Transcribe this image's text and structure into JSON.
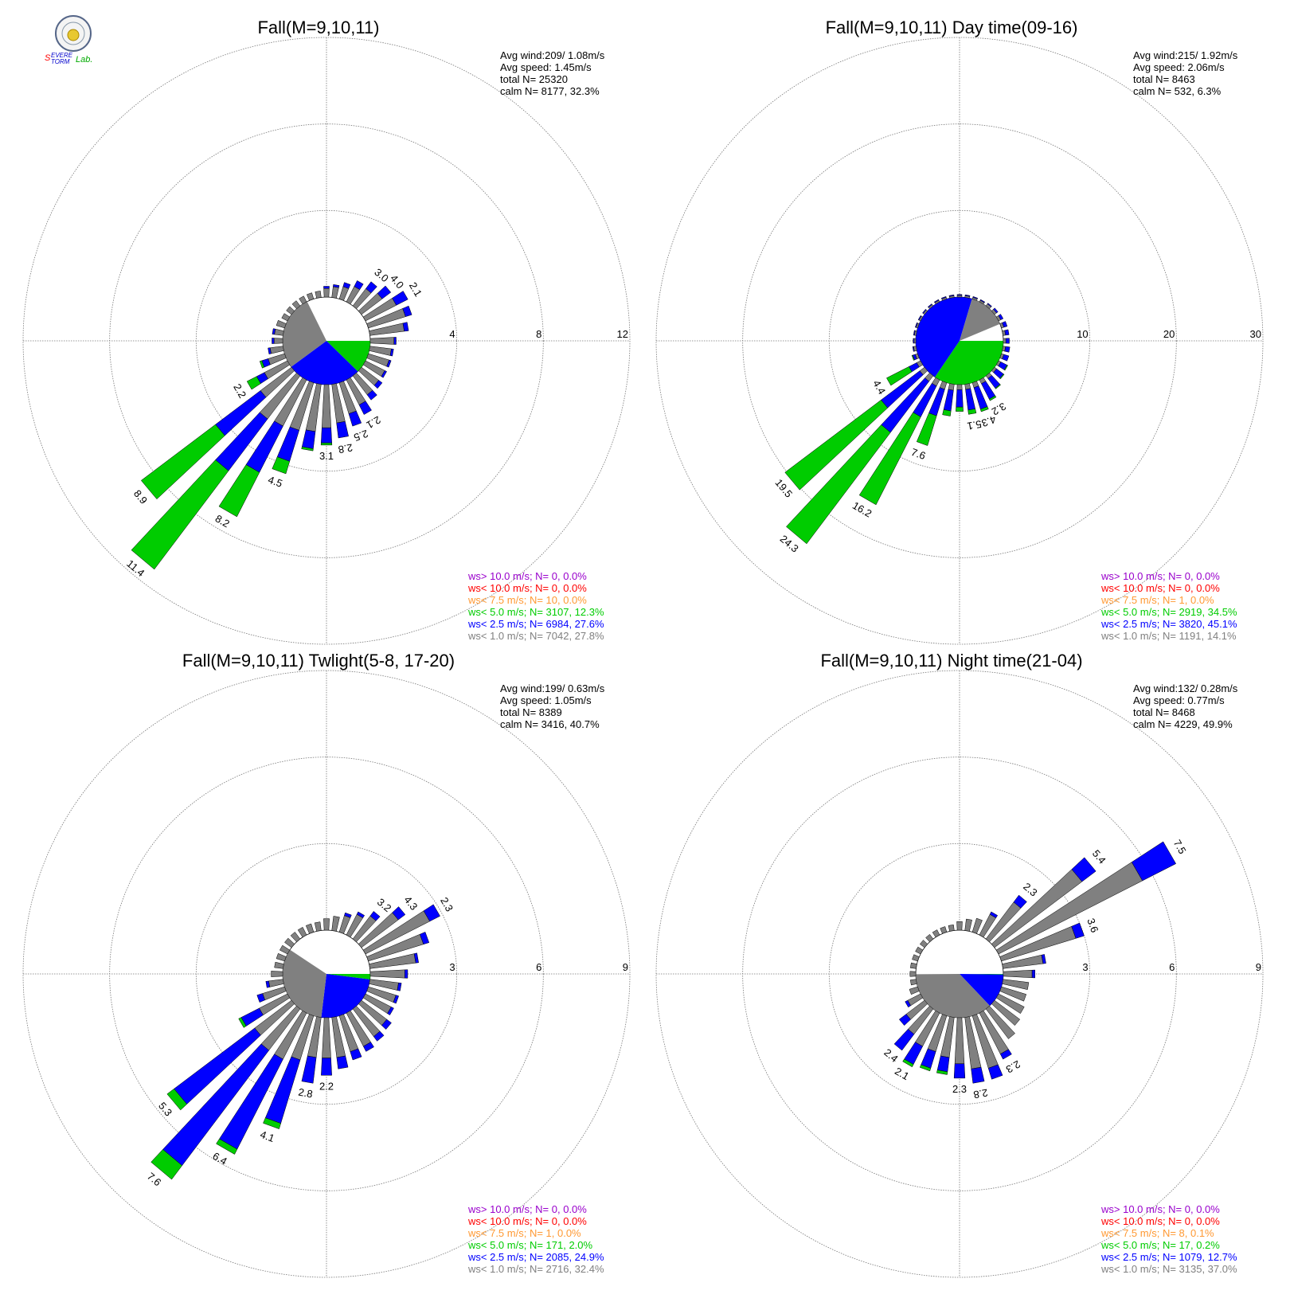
{
  "logo": {
    "alt": "Severe Storm Lab."
  },
  "colors": {
    "ws_gt10": "#9900cc",
    "ws_lt10": "#ff0000",
    "ws_lt75": "#ff9933",
    "ws_lt5": "#00cc00",
    "ws_lt25": "#0000ff",
    "ws_lt1": "#808080"
  },
  "chart_data": [
    {
      "type": "windrose",
      "title": "Fall(M=9,10,11)",
      "stats": [
        "Avg wind:209/ 1.08m/s",
        "Avg speed: 1.45m/s",
        "total N=      25320",
        "calm N=  8177,  32.3%"
      ],
      "rings": [
        "4",
        "8",
        "12"
      ],
      "rmax": 12,
      "calm_pie": {
        "gray": 27.8,
        "blue": 27.6,
        "green": 12.3
      },
      "legend": [
        "ws> 10.0 m/s; N=    0,  0.0%",
        "ws< 10.0 m/s; N=    0,  0.0%",
        "ws<  7.5 m/s; N=   10,  0.0%",
        "ws<  5.0 m/s; N= 3107, 12.3%",
        "ws<  2.5 m/s; N= 6984, 27.6%",
        "ws<  1.0 m/s; N= 7042, 27.8%"
      ],
      "directions_deg": [
        0,
        10,
        20,
        30,
        40,
        50,
        60,
        70,
        80,
        90,
        100,
        110,
        120,
        130,
        140,
        150,
        160,
        170,
        180,
        190,
        200,
        210,
        220,
        230,
        240,
        250,
        260,
        270,
        280,
        290,
        300,
        310,
        320,
        330,
        340,
        350
      ],
      "gray": [
        0.4,
        0.5,
        0.6,
        0.8,
        1.0,
        1.2,
        1.6,
        1.8,
        1.6,
        1.1,
        1.0,
        1.0,
        1.0,
        1.0,
        1.1,
        1.3,
        1.5,
        1.8,
        2.0,
        2.2,
        2.3,
        2.4,
        2.5,
        1.8,
        1.2,
        0.8,
        0.6,
        0.4,
        0.4,
        0.4,
        0.3,
        0.3,
        0.3,
        0.3,
        0.3,
        0.3
      ],
      "blue": [
        0.1,
        0.1,
        0.2,
        0.3,
        0.4,
        0.5,
        0.6,
        0.3,
        0.2,
        0.1,
        0.1,
        0.1,
        0.1,
        0.2,
        0.3,
        0.5,
        0.6,
        0.7,
        0.7,
        0.8,
        1.5,
        2.4,
        3.0,
        2.6,
        0.4,
        0.3,
        0.1,
        0.1,
        0.1,
        0.0,
        0.0,
        0.0,
        0.0,
        0.0,
        0.0,
        0.0
      ],
      "green": [
        0,
        0,
        0,
        0,
        0,
        0,
        0,
        0,
        0,
        0,
        0,
        0,
        0,
        0,
        0,
        0,
        0,
        0,
        0.1,
        0.1,
        0.6,
        2.3,
        5.7,
        4.3,
        0.5,
        0.1,
        0,
        0,
        0,
        0,
        0,
        0,
        0,
        0,
        0,
        0
      ],
      "labels": [
        {
          "dir": 60,
          "text": "2.1"
        },
        {
          "dir": 50,
          "text": "4.0"
        },
        {
          "dir": 40,
          "text": "3.0"
        },
        {
          "dir": 150,
          "text": "2.1"
        },
        {
          "dir": 160,
          "text": "2.5"
        },
        {
          "dir": 170,
          "text": "2.8"
        },
        {
          "dir": 180,
          "text": "3.1"
        },
        {
          "dir": 200,
          "text": "4.5"
        },
        {
          "dir": 210,
          "text": "8.2"
        },
        {
          "dir": 220,
          "text": "11.4"
        },
        {
          "dir": 230,
          "text": "8.9"
        },
        {
          "dir": 240,
          "text": "2.2"
        }
      ]
    },
    {
      "type": "windrose",
      "title": "Fall(M=9,10,11) Day time(09-16)",
      "stats": [
        "Avg wind:215/ 1.92m/s",
        "Avg speed: 2.06m/s",
        "total N=       8463",
        "calm N=   532,   6.3%"
      ],
      "rings": [
        "10",
        "20",
        "30"
      ],
      "rmax": 30,
      "calm_pie": {
        "gray": 14.1,
        "blue": 45.1,
        "green": 34.5
      },
      "legend": [
        "ws> 10.0 m/s; N=    0,  0.0%",
        "ws< 10.0 m/s; N=    0,  0.0%",
        "ws<  7.5 m/s; N=    1,  0.0%",
        "ws<  5.0 m/s; N= 2919, 34.5%",
        "ws<  2.5 m/s; N= 3820, 45.1%",
        "ws<  1.0 m/s; N= 1191, 14.1%"
      ],
      "directions_deg": [
        0,
        10,
        20,
        30,
        40,
        50,
        60,
        70,
        80,
        90,
        100,
        110,
        120,
        130,
        140,
        150,
        160,
        170,
        180,
        190,
        200,
        210,
        220,
        230,
        240,
        250,
        260,
        270,
        280,
        290,
        300,
        310,
        320,
        330,
        340,
        350
      ],
      "gray": [
        0.2,
        0.2,
        0.2,
        0.2,
        0.3,
        0.3,
        0.3,
        0.3,
        0.3,
        0.3,
        0.3,
        0.3,
        0.3,
        0.3,
        0.4,
        0.5,
        0.6,
        0.6,
        0.6,
        0.7,
        0.8,
        0.8,
        0.8,
        0.7,
        0.5,
        0.3,
        0.3,
        0.2,
        0.2,
        0.2,
        0.2,
        0.2,
        0.2,
        0.2,
        0.2,
        0.2
      ],
      "blue": [
        0.1,
        0.1,
        0.1,
        0.1,
        0.1,
        0.2,
        0.3,
        0.4,
        0.4,
        0.4,
        0.5,
        0.6,
        0.8,
        1.0,
        1.4,
        2.0,
        2.6,
        2.4,
        2.0,
        2.4,
        3.2,
        4.0,
        7.4,
        5.6,
        1.0,
        0.3,
        0.1,
        0.1,
        0.1,
        0.1,
        0.1,
        0.1,
        0.1,
        0.1,
        0.1,
        0.1
      ],
      "green": [
        0,
        0,
        0,
        0,
        0,
        0,
        0,
        0,
        0,
        0,
        0,
        0,
        0.1,
        0.1,
        0.1,
        0.2,
        0.3,
        0.5,
        0.5,
        0.6,
        3.6,
        11.4,
        16.1,
        13.9,
        2.9,
        0.1,
        0,
        0,
        0,
        0,
        0,
        0,
        0,
        0,
        0,
        0
      ],
      "labels": [
        {
          "dir": 150,
          "text": "3.2"
        },
        {
          "dir": 160,
          "text": "4.3"
        },
        {
          "dir": 170,
          "text": "5.1"
        },
        {
          "dir": 200,
          "text": "7.6"
        },
        {
          "dir": 210,
          "text": "16.2"
        },
        {
          "dir": 220,
          "text": "24.3"
        },
        {
          "dir": 230,
          "text": "19.5"
        },
        {
          "dir": 240,
          "text": "4.4"
        }
      ]
    },
    {
      "type": "windrose",
      "title": "Fall(M=9,10,11) Twlight(5-8, 17-20)",
      "stats": [
        "Avg wind:199/ 0.63m/s",
        "Avg speed: 1.05m/s",
        "total N=       8389",
        "calm N=  3416,  40.7%"
      ],
      "rings": [
        "3",
        "6",
        "9"
      ],
      "rmax": 9,
      "calm_pie": {
        "gray": 32.4,
        "blue": 24.9,
        "green": 2.0
      },
      "legend": [
        "ws> 10.0 m/s; N=    0,  0.0%",
        "ws< 10.0 m/s; N=    0,  0.0%",
        "ws<  7.5 m/s; N=    1,  0.0%",
        "ws<  5.0 m/s; N=  171,  2.0%",
        "ws<  2.5 m/s; N= 2085, 24.9%",
        "ws<  1.0 m/s; N= 2716, 32.4%"
      ],
      "directions_deg": [
        0,
        10,
        20,
        30,
        40,
        50,
        60,
        70,
        80,
        90,
        100,
        110,
        120,
        130,
        140,
        150,
        160,
        170,
        180,
        190,
        200,
        210,
        220,
        230,
        240,
        250,
        260,
        270,
        280,
        290,
        300,
        310,
        320,
        330,
        340,
        350
      ],
      "gray": [
        0.4,
        0.5,
        0.6,
        0.8,
        1.0,
        1.6,
        2.5,
        2.0,
        1.6,
        1.2,
        1.0,
        1.0,
        1.0,
        1.1,
        1.2,
        1.3,
        1.3,
        1.4,
        1.4,
        1.4,
        1.6,
        1.8,
        1.8,
        1.6,
        1.1,
        0.8,
        0.5,
        0.4,
        0.3,
        0.3,
        0.3,
        0.3,
        0.3,
        0.3,
        0.3,
        0.3
      ],
      "blue": [
        0.0,
        0.0,
        0.1,
        0.1,
        0.2,
        0.3,
        0.4,
        0.2,
        0.1,
        0.1,
        0.1,
        0.1,
        0.1,
        0.2,
        0.2,
        0.2,
        0.3,
        0.4,
        0.6,
        0.9,
        2.3,
        3.5,
        5.0,
        3.5,
        0.7,
        0.2,
        0.1,
        0,
        0,
        0,
        0,
        0,
        0,
        0,
        0,
        0
      ],
      "green": [
        0,
        0,
        0,
        0,
        0,
        0,
        0,
        0,
        0,
        0,
        0,
        0,
        0,
        0,
        0,
        0,
        0,
        0,
        0,
        0,
        0.2,
        0.2,
        0.6,
        0.3,
        0.1,
        0,
        0,
        0,
        0,
        0,
        0,
        0,
        0,
        0,
        0,
        0
      ],
      "labels": [
        {
          "dir": 60,
          "text": "2.3"
        },
        {
          "dir": 50,
          "text": "4.3"
        },
        {
          "dir": 40,
          "text": "3.2"
        },
        {
          "dir": 180,
          "text": "2.2"
        },
        {
          "dir": 190,
          "text": "2.8"
        },
        {
          "dir": 200,
          "text": "4.1"
        },
        {
          "dir": 210,
          "text": "6.4"
        },
        {
          "dir": 220,
          "text": "7.6"
        },
        {
          "dir": 230,
          "text": "5.3"
        }
      ]
    },
    {
      "type": "windrose",
      "title": "Fall(M=9,10,11) Night time(21-04)",
      "stats": [
        "Avg wind:132/ 0.28m/s",
        "Avg speed: 0.77m/s",
        "total N=       8468",
        "calm N=  4229,  49.9%"
      ],
      "rings": [
        "3",
        "6",
        "9"
      ],
      "rmax": 9,
      "calm_pie": {
        "gray": 37.0,
        "blue": 12.7,
        "green": 0.2
      },
      "legend": [
        "ws> 10.0 m/s; N=    0,  0.0%",
        "ws< 10.0 m/s; N=    0,  0.0%",
        "ws<  7.5 m/s; N=    8,  0.1%",
        "ws<  5.0 m/s; N=   17,  0.2%",
        "ws<  2.5 m/s; N= 1079, 12.7%",
        "ws<  1.0 m/s; N= 3135, 37.0%"
      ],
      "directions_deg": [
        0,
        10,
        20,
        30,
        40,
        50,
        60,
        70,
        80,
        90,
        100,
        110,
        120,
        130,
        140,
        150,
        160,
        170,
        180,
        190,
        200,
        210,
        220,
        230,
        240,
        250,
        260,
        270,
        280,
        290,
        300,
        310,
        320,
        330,
        340,
        350
      ],
      "gray": [
        0.3,
        0.4,
        0.5,
        0.8,
        1.6,
        3.8,
        5.6,
        2.7,
        1.4,
        1.0,
        0.9,
        0.9,
        1.0,
        1.1,
        1.3,
        1.6,
        1.9,
        1.8,
        1.6,
        1.4,
        1.3,
        1.3,
        1.1,
        0.8,
        0.5,
        0.3,
        0.2,
        0.2,
        0.2,
        0.2,
        0.2,
        0.2,
        0.2,
        0.2,
        0.2,
        0.2
      ],
      "blue": [
        0.0,
        0.0,
        0.0,
        0.1,
        0.3,
        0.6,
        1.3,
        0.3,
        0.1,
        0.1,
        0.0,
        0.0,
        0.0,
        0.0,
        0.0,
        0.2,
        0.4,
        0.5,
        0.5,
        0.5,
        0.6,
        0.7,
        0.7,
        0.3,
        0.1,
        0.0,
        0,
        0,
        0,
        0,
        0,
        0,
        0,
        0,
        0,
        0
      ],
      "green": [
        0,
        0,
        0,
        0,
        0,
        0,
        0,
        0,
        0,
        0,
        0,
        0,
        0,
        0,
        0,
        0,
        0,
        0,
        0,
        0.1,
        0.1,
        0.1,
        0,
        0,
        0,
        0,
        0,
        0,
        0,
        0,
        0,
        0,
        0,
        0,
        0,
        0
      ],
      "labels": [
        {
          "dir": 40,
          "text": "2.3"
        },
        {
          "dir": 50,
          "text": "5.4"
        },
        {
          "dir": 60,
          "text": "7.5"
        },
        {
          "dir": 70,
          "text": "3.6"
        },
        {
          "dir": 150,
          "text": "2.3"
        },
        {
          "dir": 170,
          "text": "2.8"
        },
        {
          "dir": 180,
          "text": "2.3"
        },
        {
          "dir": 210,
          "text": "2.1"
        },
        {
          "dir": 220,
          "text": "2.4"
        }
      ]
    }
  ]
}
